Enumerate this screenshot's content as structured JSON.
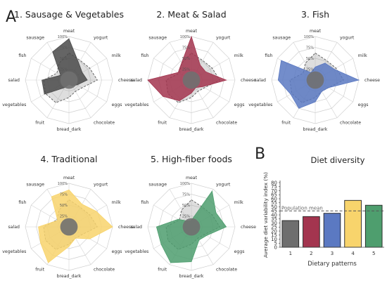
{
  "figure": {
    "panel_a": "A",
    "panel_b": "B"
  },
  "chart_data": [
    {
      "type": "radar",
      "title": "1. Sausage & Vegetables",
      "axes": [
        "meat",
        "yogurt",
        "milk",
        "cheese",
        "eggs",
        "chocolate",
        "bread_dark",
        "fruit",
        "vegetables",
        "salad",
        "fish",
        "sausage"
      ],
      "ticks": [
        "25%",
        "50%",
        "75%",
        "100%"
      ],
      "color": "#4a4a4a",
      "values": [
        0.95,
        0.45,
        0.35,
        0.42,
        0.22,
        0.15,
        0.1,
        0.2,
        0.65,
        0.62,
        0.22,
        0.75
      ],
      "reference": [
        0.62,
        0.52,
        0.55,
        0.65,
        0.35,
        0.3,
        0.4,
        0.6,
        0.62,
        0.58,
        0.32,
        0.45
      ]
    },
    {
      "type": "radar",
      "title": "2. Meat & Salad",
      "axes": [
        "meat",
        "yogurt",
        "milk",
        "cheese",
        "eggs",
        "chocolate",
        "bread_dark",
        "fruit",
        "vegetables",
        "salad",
        "fish",
        "sausage"
      ],
      "ticks": [
        "25%",
        "50%",
        "75%",
        "100%"
      ],
      "color": "#a3354f",
      "values": [
        1.0,
        0.4,
        0.38,
        0.8,
        0.3,
        0.2,
        0.3,
        0.55,
        0.75,
        1.0,
        0.35,
        0.45
      ],
      "reference": [
        0.62,
        0.52,
        0.55,
        0.65,
        0.35,
        0.3,
        0.4,
        0.6,
        0.62,
        0.58,
        0.32,
        0.45
      ]
    },
    {
      "type": "radar",
      "title": "3. Fish",
      "axes": [
        "meat",
        "yogurt",
        "milk",
        "cheese",
        "eggs",
        "chocolate",
        "bread_dark",
        "fruit",
        "vegetables",
        "salad",
        "fish",
        "sausage"
      ],
      "ticks": [
        "25%",
        "50%",
        "75%",
        "100%"
      ],
      "color": "#5b79c2",
      "values": [
        0.3,
        0.45,
        0.5,
        1.0,
        0.35,
        0.3,
        0.5,
        0.75,
        0.65,
        0.85,
        0.9,
        0.2
      ],
      "reference": [
        0.62,
        0.52,
        0.55,
        0.65,
        0.35,
        0.3,
        0.4,
        0.6,
        0.62,
        0.58,
        0.32,
        0.45
      ]
    },
    {
      "type": "radar",
      "title": "4. Traditional",
      "axes": [
        "meat",
        "yogurt",
        "milk",
        "cheese",
        "eggs",
        "chocolate",
        "bread_dark",
        "fruit",
        "vegetables",
        "salad",
        "fish",
        "sausage"
      ],
      "ticks": [
        "25%",
        "50%",
        "75%",
        "100%"
      ],
      "color": "#f8d46c",
      "values": [
        0.85,
        0.6,
        0.72,
        1.0,
        0.55,
        0.3,
        0.45,
        0.95,
        0.75,
        0.7,
        0.3,
        0.8
      ],
      "reference": [
        0.62,
        0.52,
        0.55,
        0.65,
        0.35,
        0.3,
        0.4,
        0.6,
        0.62,
        0.58,
        0.32,
        0.45
      ]
    },
    {
      "type": "radar",
      "title": "5. High-fiber foods",
      "axes": [
        "meat",
        "yogurt",
        "milk",
        "cheese",
        "eggs",
        "chocolate",
        "bread_dark",
        "fruit",
        "vegetables",
        "salad",
        "fish",
        "sausage"
      ],
      "ticks": [
        "25%",
        "50%",
        "75%",
        "100%"
      ],
      "color": "#4e9e6e",
      "values": [
        0.15,
        0.95,
        0.65,
        0.8,
        0.4,
        0.35,
        0.8,
        0.95,
        0.8,
        0.8,
        0.35,
        0.15
      ],
      "reference": [
        0.62,
        0.52,
        0.55,
        0.65,
        0.35,
        0.3,
        0.4,
        0.6,
        0.62,
        0.58,
        0.32,
        0.45
      ]
    },
    {
      "type": "bar",
      "title": "Diet diversity",
      "xlabel": "Dietary patterns",
      "ylabel": "Average diet variability index (%)",
      "categories": [
        "1",
        "2",
        "3",
        "4",
        "5"
      ],
      "values": [
        33,
        38,
        42,
        58,
        52
      ],
      "colors": [
        "#6e6e6e",
        "#a3354f",
        "#5b79c2",
        "#f8d46c",
        "#4e9e6e"
      ],
      "ylim": [
        0,
        80
      ],
      "yticks": [
        0,
        5,
        10,
        15,
        20,
        25,
        30,
        35,
        40,
        45,
        50,
        55,
        60,
        65,
        70,
        75,
        80
      ],
      "reference_line": {
        "value": 45,
        "label": "Population mean"
      }
    }
  ]
}
